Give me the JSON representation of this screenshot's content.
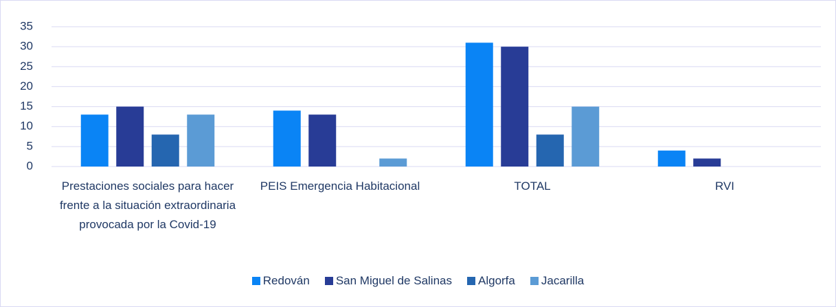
{
  "chart_data": {
    "type": "bar",
    "categories": [
      "Prestaciones sociales para hacer frente a la situación extraordinaria provocada por la Covid-19",
      "PEIS Emergencia Habitacional",
      "TOTAL",
      "RVI"
    ],
    "series": [
      {
        "name": "Redován",
        "color": "#0a84f5",
        "values": [
          13,
          14,
          31,
          4
        ]
      },
      {
        "name": "San Miguel de Salinas",
        "color": "#283c96",
        "values": [
          15,
          13,
          30,
          2
        ]
      },
      {
        "name": "Algorfa",
        "color": "#2566b0",
        "values": [
          8,
          0,
          8,
          0
        ]
      },
      {
        "name": "Jacarilla",
        "color": "#5b9bd5",
        "values": [
          13,
          2,
          15,
          0
        ]
      }
    ],
    "ylim": [
      0,
      35
    ],
    "yticks": [
      0,
      5,
      10,
      15,
      20,
      25,
      30,
      35
    ],
    "grid": true,
    "legend": "bottom"
  }
}
